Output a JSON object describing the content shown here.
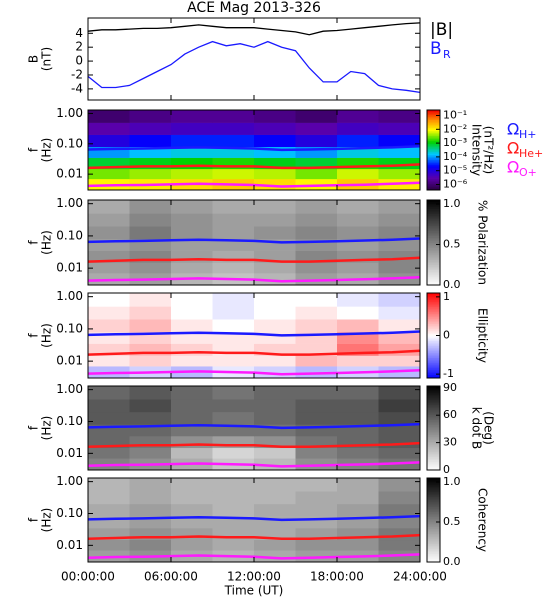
{
  "chart_data": [
    {
      "type": "line",
      "title": "ACE Mag 2013-326",
      "ylabel": [
        "B",
        "(nT)"
      ],
      "xlim": [
        0,
        24
      ],
      "xticks": [
        0,
        6,
        12,
        18,
        24
      ],
      "ylim": [
        -5.6,
        6.2
      ],
      "yticks": [
        4,
        2,
        0,
        -2,
        -4
      ],
      "x": [
        0,
        1,
        2,
        3,
        4,
        5,
        6,
        7,
        8,
        9,
        10,
        11,
        12,
        13,
        14,
        15,
        16,
        17,
        18,
        19,
        20,
        21,
        22,
        23,
        24
      ],
      "series": [
        {
          "name": "|B|",
          "color": "#000000",
          "values": [
            4.3,
            4.5,
            4.5,
            4.6,
            4.7,
            4.7,
            4.8,
            5.0,
            5.2,
            5.0,
            4.8,
            4.8,
            4.8,
            4.6,
            4.4,
            4.2,
            3.8,
            4.3,
            4.4,
            4.6,
            4.8,
            5.0,
            5.2,
            5.4,
            5.5
          ]
        },
        {
          "name": "B",
          "subscript": "R",
          "color": "#1a1aff",
          "values": [
            -2.2,
            -3.8,
            -3.8,
            -3.5,
            -2.5,
            -1.5,
            -0.5,
            1.0,
            2.0,
            2.8,
            2.2,
            2.5,
            2.0,
            2.8,
            2.0,
            1.5,
            -1.0,
            -3.0,
            -3.0,
            -1.5,
            -1.8,
            -3.5,
            -4.0,
            -4.2,
            -4.5
          ]
        }
      ]
    },
    {
      "type": "spectrogram",
      "ylabel": [
        "f",
        "(Hz)"
      ],
      "ylog": true,
      "xlim": [
        0,
        24
      ],
      "xticks": [
        0,
        6,
        12,
        18,
        24
      ],
      "ylim": [
        0.003,
        1.3
      ],
      "yticks": [
        {
          "value": 1,
          "label": "1.00"
        },
        {
          "value": 0.1,
          "label": "0.10"
        },
        {
          "value": 0.01,
          "label": "0.01"
        }
      ],
      "time_edges": [
        0,
        3,
        6,
        9,
        12,
        15,
        18,
        21,
        24
      ],
      "freq_edges": [
        0.003,
        0.007,
        0.015,
        0.035,
        0.08,
        0.2,
        0.5,
        1.3
      ],
      "z": [
        [
          0.01,
          0.012,
          0.015,
          0.02,
          0.015,
          0.01,
          0.02,
          0.012
        ],
        [
          0.003,
          0.004,
          0.005,
          0.006,
          0.005,
          0.003,
          0.006,
          0.004
        ],
        [
          0.0008,
          0.001,
          0.0012,
          0.0015,
          0.001,
          0.0008,
          0.0015,
          0.001
        ],
        [
          0.0001,
          0.00015,
          0.0002,
          0.0002,
          0.00015,
          0.0001,
          0.0002,
          0.00015
        ],
        [
          1e-05,
          2e-05,
          3e-05,
          3e-05,
          2e-05,
          1e-05,
          3e-05,
          2e-05
        ],
        [
          3e-06,
          4e-06,
          5e-06,
          5e-06,
          4e-06,
          3e-06,
          5e-06,
          4e-06
        ],
        [
          1e-06,
          1.5e-06,
          2e-06,
          2e-06,
          1.5e-06,
          1e-06,
          2e-06,
          1.5e-06
        ]
      ],
      "colormap": "rainbow",
      "zlog": true,
      "zlim": [
        4e-07,
        0.25
      ],
      "zticks": [
        {
          "value": 0.1,
          "label": "10⁻¹"
        },
        {
          "value": 0.01,
          "label": "10⁻²"
        },
        {
          "value": 0.001,
          "label": "10⁻³"
        },
        {
          "value": 0.0001,
          "label": "10⁻⁴"
        },
        {
          "value": 1e-05,
          "label": "10⁻⁵"
        },
        {
          "value": 1e-06,
          "label": "10⁻⁶"
        }
      ],
      "zlabel": [
        "Intensity",
        "(nT²/Hz)"
      ],
      "line_x": [
        0,
        2,
        4,
        6,
        8,
        10,
        12,
        14,
        16,
        18,
        20,
        22,
        24
      ],
      "series": [
        {
          "name": "Ω",
          "subscript": "H+",
          "color": "#1a1aff",
          "values": [
            0.065,
            0.068,
            0.07,
            0.073,
            0.076,
            0.073,
            0.07,
            0.063,
            0.065,
            0.068,
            0.072,
            0.076,
            0.083
          ]
        },
        {
          "name": "Ω",
          "subscript": "He+",
          "color": "#ff1a1a",
          "values": [
            0.016,
            0.017,
            0.018,
            0.018,
            0.019,
            0.018,
            0.018,
            0.016,
            0.016,
            0.017,
            0.018,
            0.019,
            0.021
          ]
        },
        {
          "name": "Ω",
          "subscript": "O+",
          "color": "#ff1aff",
          "values": [
            0.0041,
            0.0043,
            0.0044,
            0.0046,
            0.0048,
            0.0046,
            0.0044,
            0.0039,
            0.0041,
            0.0043,
            0.0045,
            0.0048,
            0.0052
          ]
        }
      ]
    },
    {
      "type": "spectrogram",
      "ylabel": [
        "f",
        "(Hz)"
      ],
      "ylog": true,
      "xlim": [
        0,
        24
      ],
      "xticks": [
        0,
        6,
        12,
        18,
        24
      ],
      "ylim": [
        0.003,
        1.3
      ],
      "yticks": [
        {
          "value": 1,
          "label": "1.00"
        },
        {
          "value": 0.1,
          "label": "0.10"
        },
        {
          "value": 0.01,
          "label": "0.01"
        }
      ],
      "time_edges": [
        0,
        3,
        6,
        9,
        12,
        15,
        18,
        21,
        24
      ],
      "freq_edges": [
        0.003,
        0.007,
        0.015,
        0.035,
        0.08,
        0.2,
        0.5,
        1.3
      ],
      "z": [
        [
          0.35,
          0.4,
          0.3,
          0.25,
          0.3,
          0.4,
          0.35,
          0.45
        ],
        [
          0.4,
          0.45,
          0.35,
          0.3,
          0.35,
          0.45,
          0.4,
          0.5
        ],
        [
          0.45,
          0.5,
          0.4,
          0.35,
          0.4,
          0.5,
          0.45,
          0.5
        ],
        [
          0.4,
          0.45,
          0.4,
          0.4,
          0.4,
          0.45,
          0.4,
          0.45
        ],
        [
          0.45,
          0.55,
          0.45,
          0.4,
          0.45,
          0.5,
          0.45,
          0.5
        ],
        [
          0.4,
          0.5,
          0.45,
          0.4,
          0.4,
          0.45,
          0.4,
          0.45
        ],
        [
          0.35,
          0.45,
          0.4,
          0.35,
          0.35,
          0.4,
          0.35,
          0.4
        ]
      ],
      "colormap": "gray",
      "zlog": false,
      "zlim": [
        0,
        1.05
      ],
      "zticks": [
        {
          "value": 1,
          "label": "1.0"
        },
        {
          "value": 0.5,
          "label": "0.5"
        },
        {
          "value": 0,
          "label": "0.0"
        }
      ],
      "zlabel": [
        "% Polarization"
      ],
      "line_x": [
        0,
        2,
        4,
        6,
        8,
        10,
        12,
        14,
        16,
        18,
        20,
        22,
        24
      ],
      "series": [
        {
          "color": "#1a1aff",
          "values": [
            0.065,
            0.068,
            0.07,
            0.073,
            0.076,
            0.073,
            0.07,
            0.063,
            0.065,
            0.068,
            0.072,
            0.076,
            0.083
          ]
        },
        {
          "color": "#ff1a1a",
          "values": [
            0.016,
            0.017,
            0.018,
            0.018,
            0.019,
            0.018,
            0.018,
            0.016,
            0.016,
            0.017,
            0.018,
            0.019,
            0.021
          ]
        },
        {
          "color": "#ff1aff",
          "values": [
            0.0041,
            0.0043,
            0.0044,
            0.0046,
            0.0048,
            0.0046,
            0.0044,
            0.0039,
            0.0041,
            0.0043,
            0.0045,
            0.0048,
            0.0052
          ]
        }
      ]
    },
    {
      "type": "spectrogram",
      "ylabel": [
        "f",
        "(Hz)"
      ],
      "ylog": true,
      "xlim": [
        0,
        24
      ],
      "xticks": [
        0,
        6,
        12,
        18,
        24
      ],
      "ylim": [
        0.003,
        1.3
      ],
      "yticks": [
        {
          "value": 1,
          "label": "1.00"
        },
        {
          "value": 0.1,
          "label": "0.10"
        },
        {
          "value": 0.01,
          "label": "0.01"
        }
      ],
      "time_edges": [
        0,
        3,
        6,
        9,
        12,
        15,
        18,
        21,
        24
      ],
      "freq_edges": [
        0.003,
        0.007,
        0.015,
        0.035,
        0.08,
        0.2,
        0.5,
        1.3
      ],
      "z": [
        [
          -0.3,
          -0.2,
          -0.3,
          -0.1,
          -0.2,
          -0.3,
          -0.2,
          -0.3
        ],
        [
          0.1,
          0.2,
          0.1,
          0.1,
          0.1,
          0.3,
          0.2,
          0.2
        ],
        [
          0.2,
          0.3,
          0.2,
          0.1,
          0.2,
          0.2,
          0.6,
          0.4
        ],
        [
          0.1,
          0.2,
          0.1,
          0.1,
          0.1,
          0.2,
          0.5,
          0.3
        ],
        [
          0.2,
          0.3,
          0.1,
          0.0,
          0.1,
          0.2,
          0.3,
          0.1
        ],
        [
          0.1,
          0.2,
          0.0,
          -0.1,
          0.0,
          0.1,
          0.0,
          -0.1
        ],
        [
          0.0,
          0.1,
          0.0,
          -0.1,
          0.0,
          0.0,
          -0.1,
          -0.2
        ]
      ],
      "colormap": "bwr",
      "zlog": false,
      "zlim": [
        -1.1,
        1.1
      ],
      "zticks": [
        1,
        0,
        -1
      ],
      "zlabel": [
        "Ellipticity"
      ],
      "line_x": [
        0,
        2,
        4,
        6,
        8,
        10,
        12,
        14,
        16,
        18,
        20,
        22,
        24
      ],
      "series": [
        {
          "color": "#1a1aff",
          "values": [
            0.065,
            0.068,
            0.07,
            0.073,
            0.076,
            0.073,
            0.07,
            0.063,
            0.065,
            0.068,
            0.072,
            0.076,
            0.083
          ]
        },
        {
          "color": "#ff1a1a",
          "values": [
            0.016,
            0.017,
            0.018,
            0.018,
            0.019,
            0.018,
            0.018,
            0.016,
            0.016,
            0.017,
            0.018,
            0.019,
            0.021
          ]
        },
        {
          "color": "#ff1aff",
          "values": [
            0.0041,
            0.0043,
            0.0044,
            0.0046,
            0.0048,
            0.0046,
            0.0044,
            0.0039,
            0.0041,
            0.0043,
            0.0045,
            0.0048,
            0.0052
          ]
        }
      ]
    },
    {
      "type": "spectrogram",
      "ylabel": [
        "f",
        "(Hz)"
      ],
      "ylog": true,
      "xlim": [
        0,
        24
      ],
      "xticks": [
        0,
        6,
        12,
        18,
        24
      ],
      "ylim": [
        0.003,
        1.3
      ],
      "yticks": [
        {
          "value": 1,
          "label": "1.00"
        },
        {
          "value": 0.1,
          "label": "0.10"
        },
        {
          "value": 0.01,
          "label": "0.01"
        }
      ],
      "time_edges": [
        0,
        3,
        6,
        9,
        12,
        15,
        18,
        21,
        24
      ],
      "freq_edges": [
        0.003,
        0.007,
        0.015,
        0.035,
        0.08,
        0.2,
        0.5,
        1.3
      ],
      "z": [
        [
          45,
          40,
          30,
          20,
          25,
          40,
          45,
          50
        ],
        [
          50,
          45,
          25,
          15,
          20,
          45,
          50,
          55
        ],
        [
          55,
          50,
          40,
          35,
          40,
          50,
          55,
          60
        ],
        [
          55,
          55,
          50,
          50,
          50,
          55,
          55,
          60
        ],
        [
          60,
          60,
          55,
          50,
          55,
          60,
          60,
          65
        ],
        [
          60,
          65,
          55,
          55,
          55,
          60,
          60,
          70
        ],
        [
          55,
          60,
          55,
          50,
          55,
          55,
          55,
          65
        ]
      ],
      "colormap": "gray",
      "zlog": false,
      "zlim": [
        0,
        92
      ],
      "zticks": [
        90,
        60,
        30,
        0
      ],
      "zlabel": [
        "k dot B",
        "(Deg)"
      ],
      "line_x": [
        0,
        2,
        4,
        6,
        8,
        10,
        12,
        14,
        16,
        18,
        20,
        22,
        24
      ],
      "series": [
        {
          "color": "#1a1aff",
          "values": [
            0.065,
            0.068,
            0.07,
            0.073,
            0.076,
            0.073,
            0.07,
            0.063,
            0.065,
            0.068,
            0.072,
            0.076,
            0.083
          ]
        },
        {
          "color": "#ff1a1a",
          "values": [
            0.016,
            0.017,
            0.018,
            0.018,
            0.019,
            0.018,
            0.018,
            0.016,
            0.016,
            0.017,
            0.018,
            0.019,
            0.021
          ]
        },
        {
          "color": "#ff1aff",
          "values": [
            0.0041,
            0.0043,
            0.0044,
            0.0046,
            0.0048,
            0.0046,
            0.0044,
            0.0039,
            0.0041,
            0.0043,
            0.0045,
            0.0048,
            0.0052
          ]
        }
      ]
    },
    {
      "type": "spectrogram",
      "ylabel": [
        "f",
        "(Hz)"
      ],
      "ylog": true,
      "xlabel": "Time (UT)",
      "xlim": [
        0,
        24
      ],
      "xticks": [
        {
          "value": 0,
          "label": "00:00:00"
        },
        {
          "value": 6,
          "label": "06:00:00"
        },
        {
          "value": 12,
          "label": "12:00:00"
        },
        {
          "value": 18,
          "label": "18:00:00"
        },
        {
          "value": 24,
          "label": "24:00:00"
        }
      ],
      "ylim": [
        0.003,
        1.3
      ],
      "yticks": [
        {
          "value": 1,
          "label": "1.00"
        },
        {
          "value": 0.1,
          "label": "0.10"
        },
        {
          "value": 0.01,
          "label": "0.01"
        }
      ],
      "time_edges": [
        0,
        3,
        6,
        9,
        12,
        15,
        18,
        21,
        24
      ],
      "freq_edges": [
        0.003,
        0.007,
        0.015,
        0.035,
        0.08,
        0.2,
        0.5,
        1.3
      ],
      "z": [
        [
          0.4,
          0.45,
          0.35,
          0.3,
          0.35,
          0.4,
          0.4,
          0.5
        ],
        [
          0.45,
          0.5,
          0.4,
          0.35,
          0.4,
          0.45,
          0.45,
          0.55
        ],
        [
          0.4,
          0.45,
          0.4,
          0.35,
          0.35,
          0.4,
          0.45,
          0.55
        ],
        [
          0.35,
          0.4,
          0.35,
          0.35,
          0.35,
          0.35,
          0.4,
          0.5
        ],
        [
          0.35,
          0.4,
          0.35,
          0.3,
          0.35,
          0.35,
          0.4,
          0.55
        ],
        [
          0.3,
          0.35,
          0.3,
          0.3,
          0.3,
          0.35,
          0.35,
          0.5
        ],
        [
          0.3,
          0.35,
          0.3,
          0.3,
          0.3,
          0.3,
          0.35,
          0.45
        ]
      ],
      "colormap": "gray",
      "zlog": false,
      "zlim": [
        0,
        1.05
      ],
      "zticks": [
        {
          "value": 1,
          "label": "1.0"
        },
        {
          "value": 0.5,
          "label": "0.5"
        },
        {
          "value": 0,
          "label": "0.0"
        }
      ],
      "zlabel": [
        "Coherency"
      ],
      "line_x": [
        0,
        2,
        4,
        6,
        8,
        10,
        12,
        14,
        16,
        18,
        20,
        22,
        24
      ],
      "series": [
        {
          "color": "#1a1aff",
          "values": [
            0.065,
            0.068,
            0.07,
            0.073,
            0.076,
            0.073,
            0.07,
            0.063,
            0.065,
            0.068,
            0.072,
            0.076,
            0.083
          ]
        },
        {
          "color": "#ff1a1a",
          "values": [
            0.016,
            0.017,
            0.018,
            0.018,
            0.019,
            0.018,
            0.018,
            0.016,
            0.016,
            0.017,
            0.018,
            0.019,
            0.021
          ]
        },
        {
          "color": "#ff1aff",
          "values": [
            0.0041,
            0.0043,
            0.0044,
            0.0046,
            0.0048,
            0.0046,
            0.0044,
            0.0039,
            0.0041,
            0.0043,
            0.0045,
            0.0048,
            0.0052
          ]
        }
      ]
    }
  ]
}
